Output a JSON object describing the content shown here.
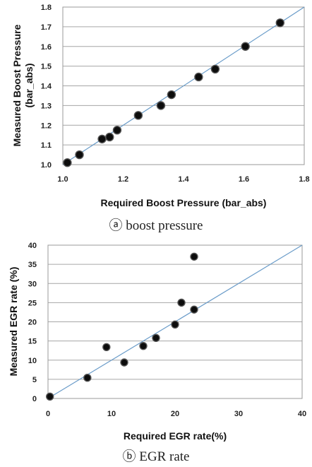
{
  "chart_data": [
    {
      "type": "scatter",
      "title": "",
      "xlabel": "Required Boost Pressure (bar_abs)",
      "ylabel": "Measured Boost Pressure (bar_abs)",
      "xlim": [
        1.0,
        1.8
      ],
      "ylim": [
        1.0,
        1.8
      ],
      "x_ticks": [
        "1.0",
        "1.2",
        "1.4",
        "1.6",
        "1.8"
      ],
      "y_ticks": [
        "1.0",
        "1.1",
        "1.2",
        "1.3",
        "1.4",
        "1.5",
        "1.6",
        "1.7",
        "1.8"
      ],
      "grid": "horizontal",
      "reference_line": "y = x",
      "caption": "ⓐ boost pressure",
      "points": [
        {
          "x": 1.015,
          "y": 1.01
        },
        {
          "x": 1.055,
          "y": 1.05
        },
        {
          "x": 1.13,
          "y": 1.13
        },
        {
          "x": 1.155,
          "y": 1.14
        },
        {
          "x": 1.18,
          "y": 1.175
        },
        {
          "x": 1.25,
          "y": 1.25
        },
        {
          "x": 1.325,
          "y": 1.3
        },
        {
          "x": 1.36,
          "y": 1.355
        },
        {
          "x": 1.45,
          "y": 1.445
        },
        {
          "x": 1.505,
          "y": 1.485
        },
        {
          "x": 1.605,
          "y": 1.6
        },
        {
          "x": 1.72,
          "y": 1.72
        }
      ]
    },
    {
      "type": "scatter",
      "title": "",
      "xlabel": "Required EGR rate(%)",
      "ylabel": "Measured EGR rate (%)",
      "xlim": [
        0,
        40
      ],
      "ylim": [
        0,
        40
      ],
      "x_ticks": [
        "0",
        "10",
        "20",
        "30",
        "40"
      ],
      "y_ticks": [
        "0",
        "5",
        "10",
        "15",
        "20",
        "25",
        "30",
        "35",
        "40"
      ],
      "grid": "horizontal",
      "reference_line": "y = x",
      "caption": "ⓑ EGR rate",
      "points": [
        {
          "x": 0.3,
          "y": 0.5
        },
        {
          "x": 6.2,
          "y": 5.4
        },
        {
          "x": 9.2,
          "y": 13.4
        },
        {
          "x": 12.0,
          "y": 9.4
        },
        {
          "x": 15.0,
          "y": 13.7
        },
        {
          "x": 17.0,
          "y": 15.8
        },
        {
          "x": 20.0,
          "y": 19.3
        },
        {
          "x": 21.0,
          "y": 25.0
        },
        {
          "x": 23.0,
          "y": 23.2
        },
        {
          "x": 23.0,
          "y": 37.0
        }
      ]
    }
  ]
}
